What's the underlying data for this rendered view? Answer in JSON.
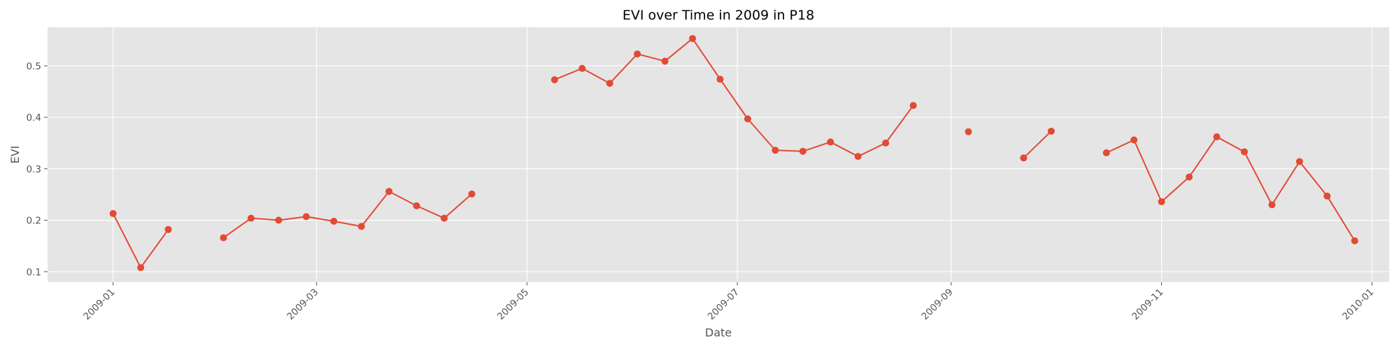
{
  "chart_data": {
    "type": "line",
    "title": "EVI over Time in 2009 in P18",
    "xlabel": "Date",
    "ylabel": "EVI",
    "x_range": [
      "2008-12-13",
      "2010-01-06"
    ],
    "ylim": [
      0.08,
      0.575
    ],
    "x_ticks": [
      "2009-01",
      "2009-03",
      "2009-05",
      "2009-07",
      "2009-09",
      "2009-11",
      "2010-01"
    ],
    "y_ticks": [
      "0.1",
      "0.2",
      "0.3",
      "0.4",
      "0.5"
    ],
    "grid": true,
    "legend": "none",
    "colors": {
      "line": "#E24A33",
      "background": "#E5E5E5",
      "grid": "#FFFFFF",
      "tick": "#555555"
    },
    "series": [
      {
        "points": [
          [
            "2009-01-01",
            0.213
          ],
          [
            "2009-01-09",
            0.108
          ],
          [
            "2009-01-17",
            0.182
          ],
          [
            "2009-01-25",
            null
          ],
          [
            "2009-02-02",
            0.166
          ],
          [
            "2009-02-10",
            0.204
          ],
          [
            "2009-02-18",
            0.2
          ],
          [
            "2009-02-26",
            0.207
          ],
          [
            "2009-03-06",
            0.198
          ],
          [
            "2009-03-14",
            0.188
          ],
          [
            "2009-03-22",
            0.256
          ],
          [
            "2009-03-30",
            0.228
          ],
          [
            "2009-04-07",
            0.204
          ],
          [
            "2009-04-15",
            0.251
          ],
          [
            "2009-04-23",
            null
          ],
          [
            "2009-05-01",
            null
          ],
          [
            "2009-05-09",
            0.473
          ],
          [
            "2009-05-17",
            0.495
          ],
          [
            "2009-05-25",
            0.466
          ],
          [
            "2009-06-02",
            0.523
          ],
          [
            "2009-06-10",
            0.509
          ],
          [
            "2009-06-18",
            0.553
          ],
          [
            "2009-06-26",
            0.474
          ],
          [
            "2009-07-04",
            0.397
          ],
          [
            "2009-07-12",
            0.336
          ],
          [
            "2009-07-20",
            0.334
          ],
          [
            "2009-07-28",
            0.352
          ],
          [
            "2009-08-05",
            0.324
          ],
          [
            "2009-08-13",
            0.35
          ],
          [
            "2009-08-21",
            0.423
          ],
          [
            "2009-08-29",
            null
          ],
          [
            "2009-09-06",
            0.372
          ],
          [
            "2009-09-14",
            null
          ],
          [
            "2009-09-22",
            0.321
          ],
          [
            "2009-09-30",
            0.373
          ],
          [
            "2009-10-08",
            null
          ],
          [
            "2009-10-16",
            0.331
          ],
          [
            "2009-10-24",
            0.356
          ],
          [
            "2009-11-01",
            0.236
          ],
          [
            "2009-11-09",
            0.284
          ],
          [
            "2009-11-17",
            0.362
          ],
          [
            "2009-11-25",
            0.333
          ],
          [
            "2009-12-03",
            0.23
          ],
          [
            "2009-12-11",
            0.314
          ],
          [
            "2009-12-19",
            0.247
          ],
          [
            "2009-12-27",
            0.16
          ]
        ]
      }
    ]
  }
}
